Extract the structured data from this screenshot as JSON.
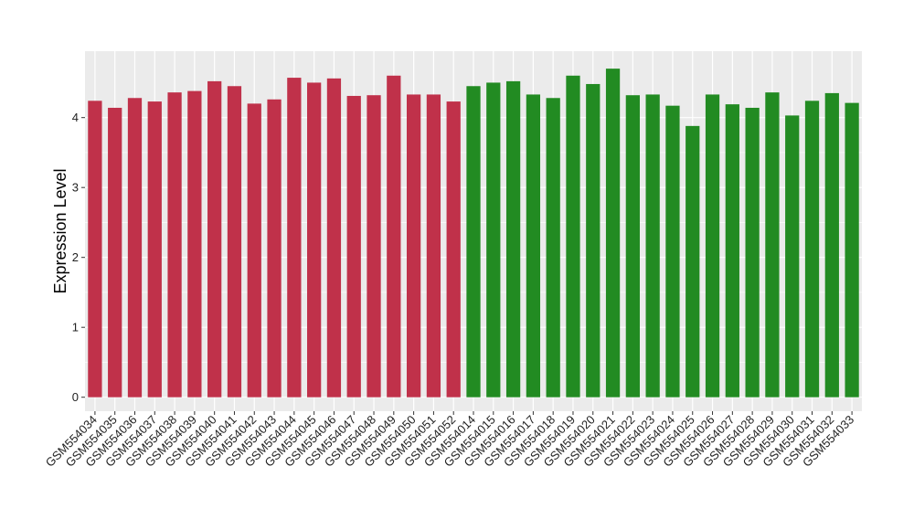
{
  "chart_data": {
    "type": "bar",
    "title": "",
    "xlabel": "",
    "ylabel": "Expression Level",
    "ylim": [
      -0.2,
      4.95
    ],
    "yticks": [
      0,
      1,
      2,
      3,
      4
    ],
    "grid": true,
    "legend": "none",
    "categories": [
      "GSM554034",
      "GSM554035",
      "GSM554036",
      "GSM554037",
      "GSM554038",
      "GSM554039",
      "GSM554040",
      "GSM554041",
      "GSM554042",
      "GSM554043",
      "GSM554044",
      "GSM554045",
      "GSM554046",
      "GSM554047",
      "GSM554048",
      "GSM554049",
      "GSM554050",
      "GSM554051",
      "GSM554052",
      "GSM554014",
      "GSM554015",
      "GSM554016",
      "GSM554017",
      "GSM554018",
      "GSM554019",
      "GSM554020",
      "GSM554021",
      "GSM554022",
      "GSM554023",
      "GSM554024",
      "GSM554025",
      "GSM554026",
      "GSM554027",
      "GSM554028",
      "GSM554029",
      "GSM554030",
      "GSM554031",
      "GSM554032",
      "GSM554033"
    ],
    "values": [
      4.24,
      4.14,
      4.28,
      4.23,
      4.36,
      4.38,
      4.52,
      4.45,
      4.2,
      4.26,
      4.57,
      4.5,
      4.56,
      4.31,
      4.32,
      4.6,
      4.33,
      4.33,
      4.23,
      4.45,
      4.5,
      4.52,
      4.33,
      4.28,
      4.6,
      4.48,
      4.7,
      4.32,
      4.33,
      4.17,
      3.88,
      4.33,
      4.19,
      4.14,
      4.36,
      4.03,
      4.24,
      4.35,
      4.21
    ],
    "groups": [
      {
        "count": 19,
        "color": "#c0314a"
      },
      {
        "count": 20,
        "color": "#228b22"
      }
    ]
  },
  "colors": {
    "panel_background": "#ebebeb",
    "gridline": "#ffffff"
  }
}
